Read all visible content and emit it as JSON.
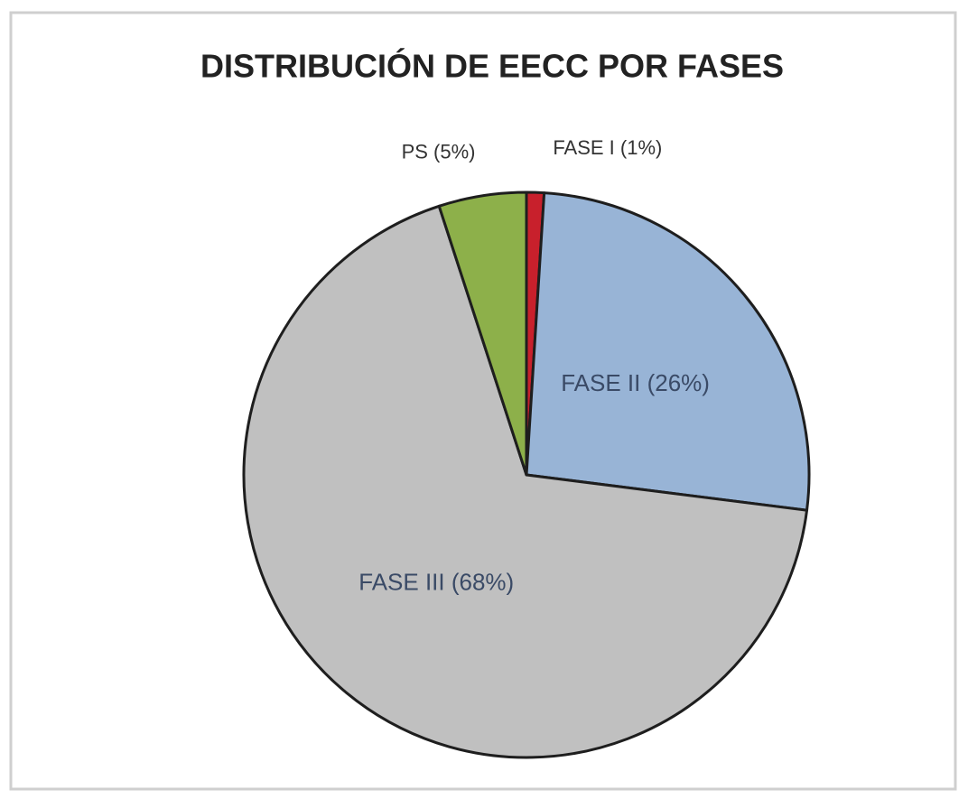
{
  "chart_data": {
    "type": "pie",
    "title": "DISTRIBUCIÓN DE EECC POR FASES",
    "values": [
      1,
      26,
      68,
      5
    ],
    "value_labels": [
      "FASE I (1%)",
      "FASE II (26%)",
      "FASE III (68%)",
      "PS (5%)"
    ],
    "colors": [
      "#c8202c",
      "#98b4d6",
      "#c0c0c0",
      "#8db04a"
    ]
  }
}
